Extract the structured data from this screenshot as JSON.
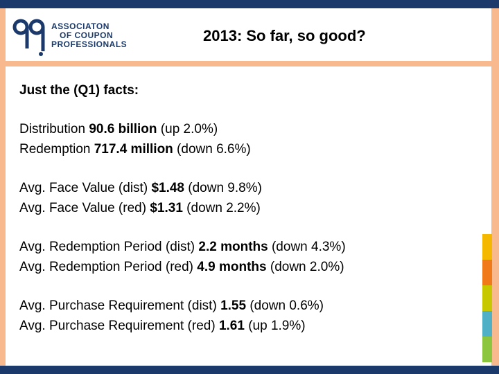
{
  "logo": {
    "line1": "ASSOCIATON",
    "line2": "OF COUPON",
    "line3": "PROFESSIONALS"
  },
  "title": "2013: So far, so good?",
  "heading": "Just the (Q1) facts:",
  "facts": {
    "distribution": {
      "label": "Distribution ",
      "value": "90.6 billion",
      "change": " (up 2.0%)"
    },
    "redemption": {
      "label": "Redemption ",
      "value": "717.4 million",
      "change": " (down 6.6%)"
    },
    "face_dist": {
      "label": "Avg. Face Value (dist) ",
      "value": "$1.48",
      "change": " (down 9.8%)"
    },
    "face_red": {
      "label": "Avg. Face Value (red) ",
      "value": "$1.31",
      "change": " (down 2.2%)"
    },
    "period_dist": {
      "label": "Avg. Redemption Period (dist) ",
      "value": "2.2 months",
      "change": " (down 4.3%)"
    },
    "period_red": {
      "label": "Avg. Redemption Period (red) ",
      "value": "4.9 months",
      "change": " (down 2.0%)"
    },
    "purchase_dist": {
      "label": "Avg. Purchase Requirement (dist) ",
      "value": "1.55",
      "change": " (down 0.6%)"
    },
    "purchase_red": {
      "label": "Avg. Purchase Requirement (red) ",
      "value": "1.61",
      "change": " (up 1.9%)"
    }
  },
  "colors": {
    "navy": "#1b3a6b",
    "frame": "#f9b98e",
    "strip": [
      "#f5b800",
      "#f07a1a",
      "#c8c800",
      "#4fb0c6",
      "#8cc63e"
    ]
  }
}
